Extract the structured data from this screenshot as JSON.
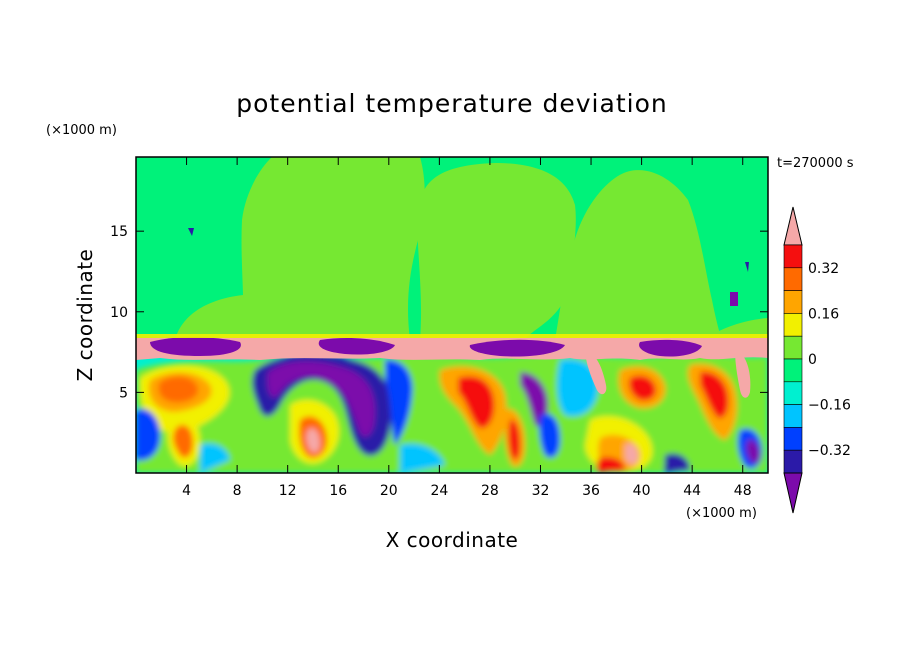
{
  "chart_data": {
    "type": "heatmap",
    "title": "potential temperature deviation",
    "time_label": "t=270000 s",
    "xlabel": "X coordinate",
    "ylabel": "Z coordinate",
    "x_unit": "(×1000 m)",
    "y_unit": "(×1000 m)",
    "xlim": [
      0,
      50
    ],
    "ylim": [
      0,
      19.6
    ],
    "x_ticks": [
      4,
      8,
      12,
      16,
      20,
      24,
      28,
      32,
      36,
      40,
      44,
      48
    ],
    "y_ticks": [
      5,
      10,
      15
    ],
    "colorbar": {
      "levels": [
        -0.4,
        -0.32,
        -0.24,
        -0.16,
        -0.08,
        0,
        0.08,
        0.16,
        0.24,
        0.32,
        0.4
      ],
      "labeled_levels": [
        "-0.32",
        "-0.16",
        "0",
        "0.16",
        "0.32"
      ],
      "colors": [
        "#7c0bab",
        "#2b1aa8",
        "#0040ff",
        "#00c4ff",
        "#00f0d0",
        "#00f27a",
        "#76e832",
        "#f2f000",
        "#ffa500",
        "#ff6a00",
        "#f50f0f",
        "#f5a8a8"
      ],
      "extend": "both"
    },
    "regions": {
      "upper_background_value": 0.02,
      "upper_plume_value": 0.06,
      "inversion_band_value": 0.45,
      "inversion_band_z": [
        7.2,
        8.8
      ],
      "boundary_layer_z": [
        0,
        7.2
      ],
      "plume_columns_x": [
        [
          9.5,
          23.5
        ],
        [
          23,
          36
        ],
        [
          35.5,
          46
        ]
      ]
    }
  }
}
